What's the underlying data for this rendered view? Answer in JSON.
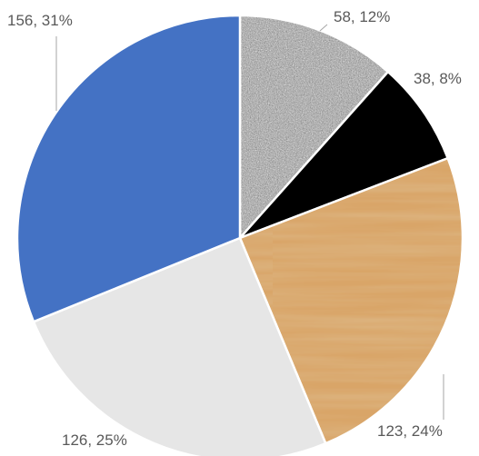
{
  "chart_data": {
    "type": "pie",
    "title": "",
    "slices": [
      {
        "value": 58,
        "percent": "12%",
        "label": "58, 12%",
        "fill": "granite",
        "color": "#9a9a9a"
      },
      {
        "value": 38,
        "percent": "8%",
        "label": "38, 8%",
        "fill": "solid",
        "color": "#000000"
      },
      {
        "value": 123,
        "percent": "24%",
        "label": "123, 24%",
        "fill": "wood",
        "color": "#b87a3f"
      },
      {
        "value": 126,
        "percent": "25%",
        "label": "126, 25%",
        "fill": "solid",
        "color": "#e6e6e6"
      },
      {
        "value": 156,
        "percent": "31%",
        "label": "156, 31%",
        "fill": "solid",
        "color": "#4472c4"
      }
    ],
    "start": "12 o'clock",
    "direction": "clockwise",
    "legend": "none",
    "data_labels": "value, percent"
  }
}
